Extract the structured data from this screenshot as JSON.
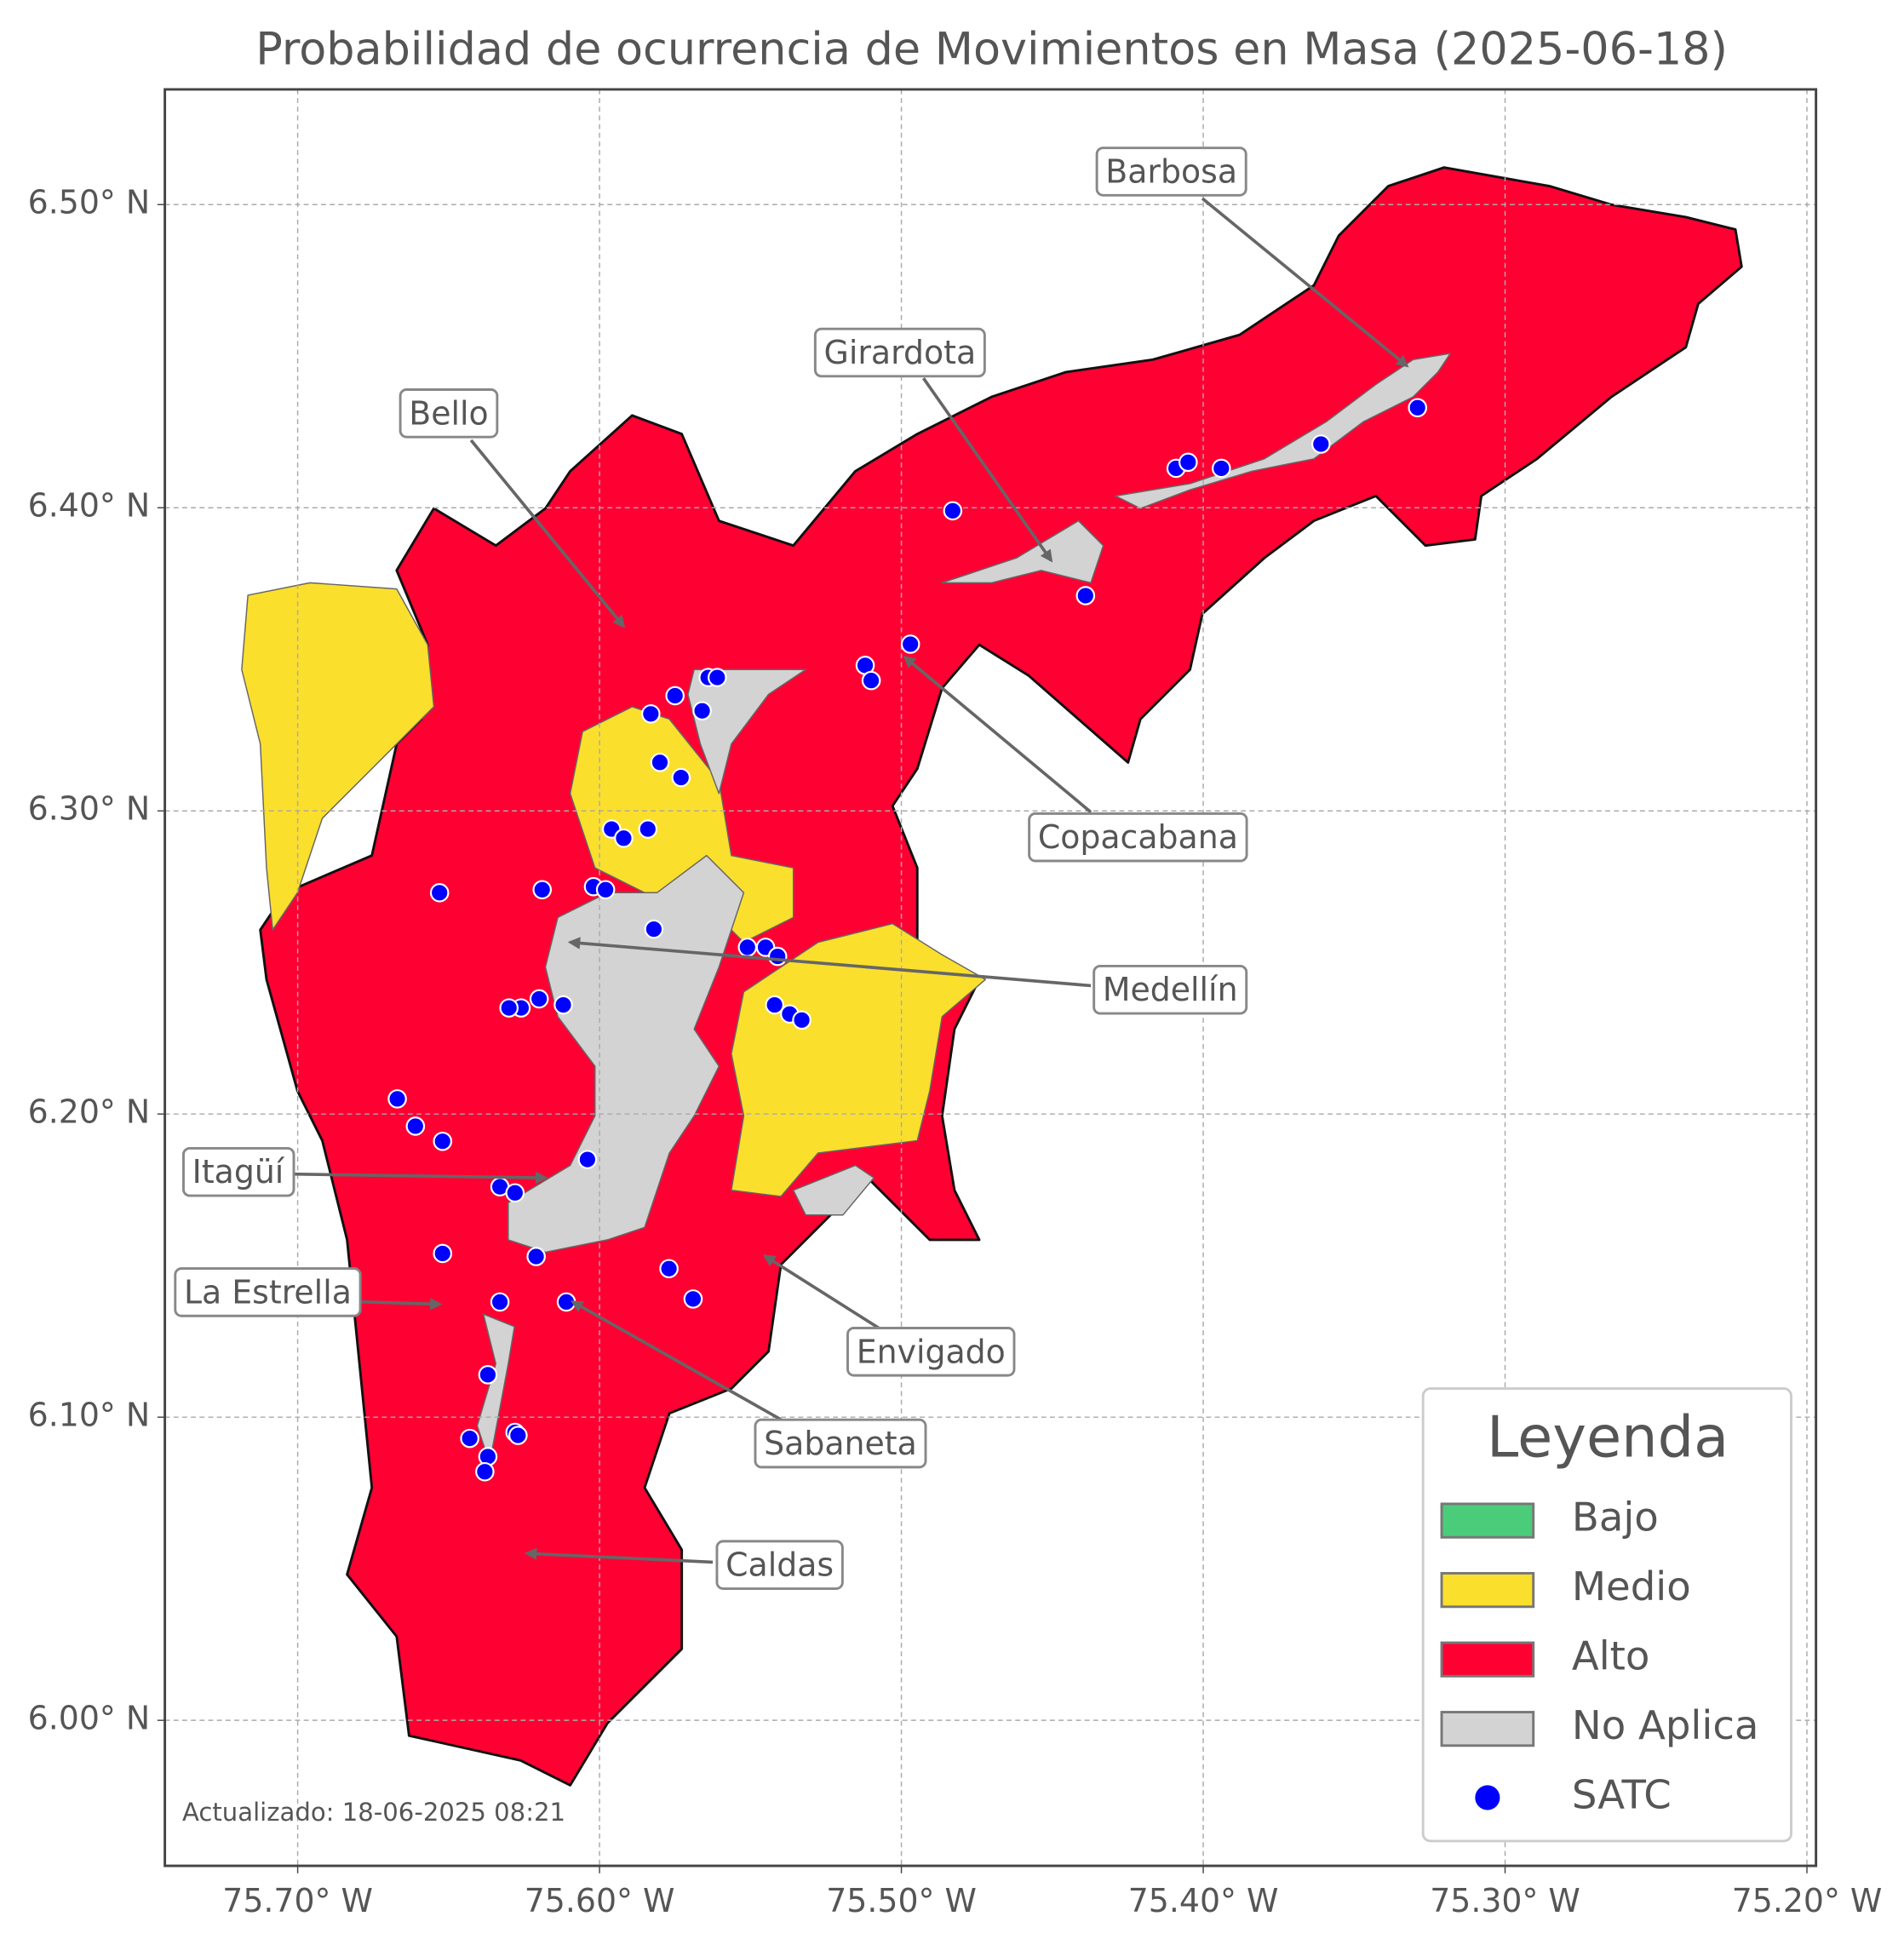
{
  "title": "Probabilidad de ocurrencia de Movimientos en Masa (2025-06-18)",
  "xlim": [
    -75.744,
    -75.197
  ],
  "ylim": [
    5.952,
    6.538
  ],
  "xticks": [
    {
      "value": -75.7,
      "label": "75.70° W"
    },
    {
      "value": -75.6,
      "label": "75.60° W"
    },
    {
      "value": -75.5,
      "label": "75.50° W"
    },
    {
      "value": -75.4,
      "label": "75.40° W"
    },
    {
      "value": -75.3,
      "label": "75.30° W"
    },
    {
      "value": -75.2,
      "label": "75.20° W"
    }
  ],
  "yticks": [
    {
      "value": 6.0,
      "label": "6.00° N"
    },
    {
      "value": 6.1,
      "label": "6.10° N"
    },
    {
      "value": 6.2,
      "label": "6.20° N"
    },
    {
      "value": 6.3,
      "label": "6.30° N"
    },
    {
      "value": 6.4,
      "label": "6.40° N"
    },
    {
      "value": 6.5,
      "label": "6.50° N"
    }
  ],
  "grid": true,
  "annotations": [
    "Barbosa",
    "Girardota",
    "Bello",
    "Copacabana",
    "Medellín",
    "Itagüí",
    "La Estrella",
    "Envigado",
    "Sabaneta",
    "Caldas"
  ],
  "legend": {
    "title": "Leyenda",
    "items": [
      {
        "label": "Bajo",
        "color": "#4bcc7a"
      },
      {
        "label": "Medio",
        "color": "#fbdf2d"
      },
      {
        "label": "Alto",
        "color": "#ff0033"
      },
      {
        "label": "No Aplica",
        "color": "#d3d3d3"
      },
      {
        "label": "SATC",
        "color": "#0000ff"
      }
    ]
  },
  "satc": {
    "lon": [
      -75.483,
      -75.409,
      -75.405,
      -75.394,
      -75.361,
      -75.329,
      -75.439,
      -75.497,
      -75.512,
      -75.51,
      -75.564,
      -75.561,
      -75.575,
      -75.566,
      -75.583,
      -75.58,
      -75.573,
      -75.596,
      -75.592,
      -75.584,
      -75.602,
      -75.598,
      -75.619,
      -75.653,
      -75.582,
      -75.551,
      -75.545,
      -75.541,
      -75.542,
      -75.537,
      -75.533,
      -75.62,
      -75.626,
      -75.63,
      -75.612,
      -75.667,
      -75.661,
      -75.652,
      -75.604,
      -75.633,
      -75.628,
      -75.621,
      -75.652,
      -75.633,
      -75.611,
      -75.577,
      -75.569,
      -75.637,
      -75.643,
      -75.628,
      -75.627,
      -75.637,
      -75.638
    ],
    "lat": [
      6.399,
      6.413,
      6.415,
      6.413,
      6.421,
      6.433,
      6.371,
      6.355,
      6.348,
      6.343,
      6.344,
      6.344,
      6.338,
      6.333,
      6.332,
      6.316,
      6.311,
      6.294,
      6.291,
      6.294,
      6.275,
      6.274,
      6.274,
      6.273,
      6.261,
      6.255,
      6.255,
      6.252,
      6.236,
      6.233,
      6.231,
      6.238,
      6.235,
      6.235,
      6.236,
      6.205,
      6.196,
      6.191,
      6.185,
      6.176,
      6.174,
      6.153,
      6.154,
      6.138,
      6.138,
      6.149,
      6.139,
      6.114,
      6.093,
      6.095,
      6.094,
      6.087,
      6.082
    ]
  },
  "timestamp": "Actualizado: 18-06-2025 08:21"
}
